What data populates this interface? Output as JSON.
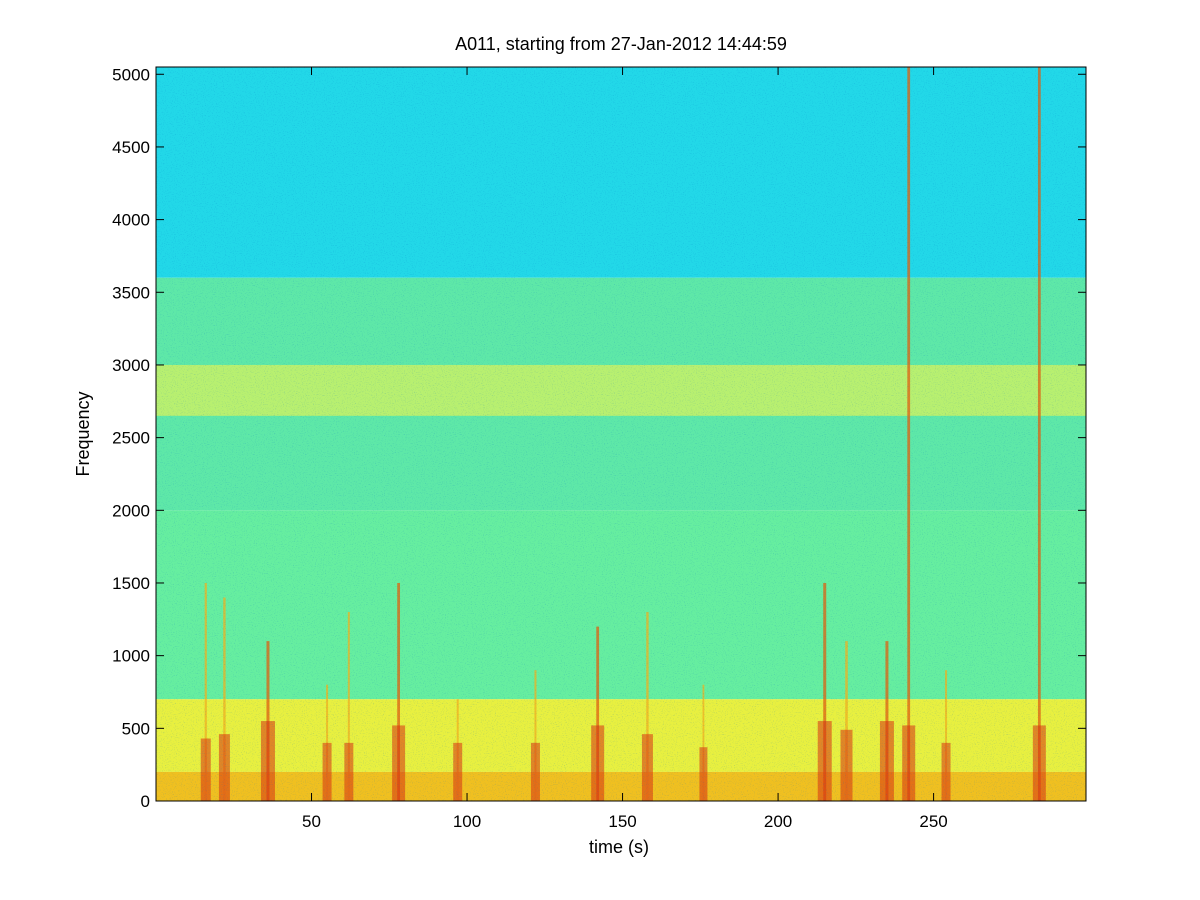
{
  "chart_data": {
    "type": "heatmap",
    "title": "A011, starting from 27-Jan-2012 14:44:59",
    "xlabel": "time (s)",
    "ylabel": "Frequency",
    "xlim": [
      0,
      299
    ],
    "ylim": [
      0,
      5050
    ],
    "x_ticks": [
      50,
      100,
      150,
      200,
      250
    ],
    "x_tick_labels": [
      "50",
      "100",
      "150",
      "200",
      "250"
    ],
    "y_ticks": [
      0,
      500,
      1000,
      1500,
      2000,
      2500,
      3000,
      3500,
      4000,
      4500,
      5000
    ],
    "y_tick_labels": [
      "0",
      "500",
      "1000",
      "1500",
      "2000",
      "2500",
      "3000",
      "3500",
      "4000",
      "4500",
      "5000"
    ],
    "colormap": "jet",
    "grid": false,
    "color_bands": [
      {
        "freq_range": [
          3600,
          5050
        ],
        "color": "#22d8e8",
        "level": "low"
      },
      {
        "freq_range": [
          2000,
          3600
        ],
        "color": "#5ee8a8",
        "level": "low-mid"
      },
      {
        "freq_range": [
          2650,
          3000
        ],
        "color": "#b8f070",
        "level": "mid"
      },
      {
        "freq_range": [
          700,
          2000
        ],
        "color": "#66eea0",
        "level": "low-mid"
      },
      {
        "freq_range": [
          200,
          700
        ],
        "color": "#e8f040",
        "level": "mid-high"
      },
      {
        "freq_range": [
          0,
          200
        ],
        "color": "#f0c020",
        "level": "high"
      }
    ],
    "transients": [
      {
        "time": 16,
        "top_freq": 1500,
        "strength": 0.6
      },
      {
        "time": 22,
        "top_freq": 1400,
        "strength": 0.7
      },
      {
        "time": 36,
        "top_freq": 1100,
        "strength": 1.0
      },
      {
        "time": 55,
        "top_freq": 800,
        "strength": 0.5
      },
      {
        "time": 62,
        "top_freq": 1300,
        "strength": 0.5
      },
      {
        "time": 78,
        "top_freq": 1500,
        "strength": 0.9
      },
      {
        "time": 97,
        "top_freq": 700,
        "strength": 0.5
      },
      {
        "time": 122,
        "top_freq": 900,
        "strength": 0.5
      },
      {
        "time": 142,
        "top_freq": 1200,
        "strength": 0.9
      },
      {
        "time": 158,
        "top_freq": 1300,
        "strength": 0.7
      },
      {
        "time": 176,
        "top_freq": 800,
        "strength": 0.4
      },
      {
        "time": 215,
        "top_freq": 1500,
        "strength": 1.0
      },
      {
        "time": 222,
        "top_freq": 1100,
        "strength": 0.8
      },
      {
        "time": 235,
        "top_freq": 1100,
        "strength": 1.0
      },
      {
        "time": 242,
        "top_freq": 5050,
        "strength": 0.9
      },
      {
        "time": 254,
        "top_freq": 900,
        "strength": 0.5
      },
      {
        "time": 284,
        "top_freq": 5050,
        "strength": 0.9
      }
    ]
  }
}
